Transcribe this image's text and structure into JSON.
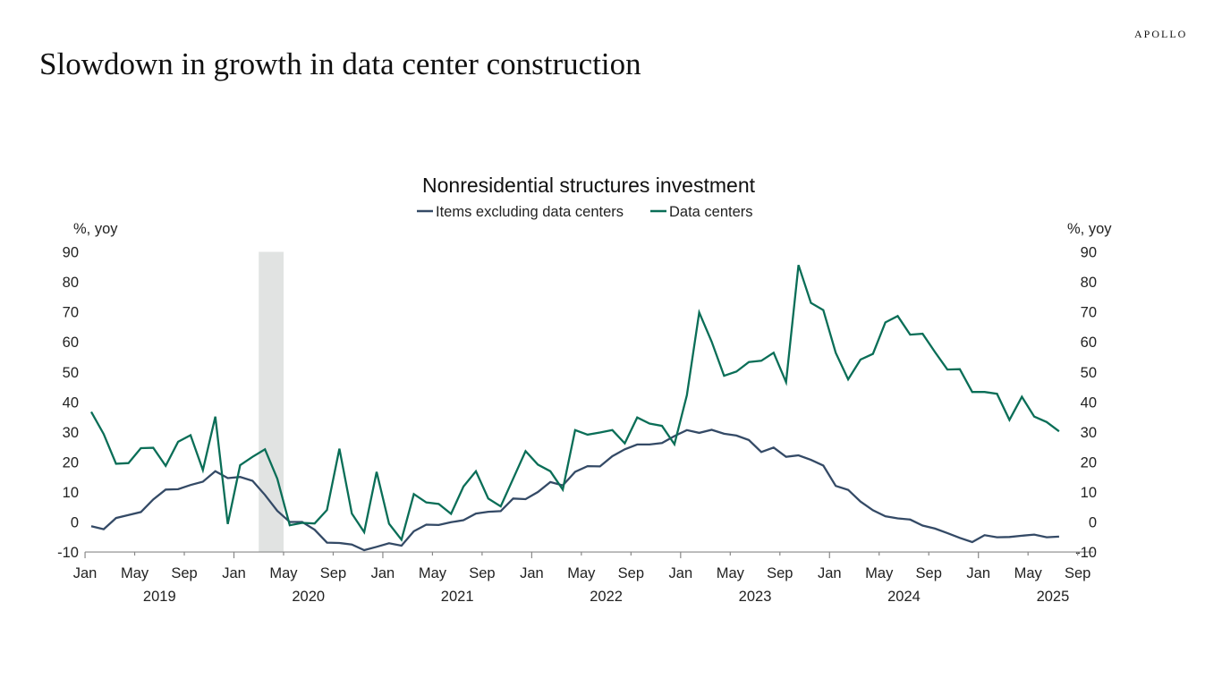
{
  "brand": "APOLLO",
  "headline": "Slowdown in growth in data center construction",
  "chart_data": {
    "type": "line",
    "title": "Nonresidential structures investment",
    "ylabel_left": "%, yoy",
    "ylabel_right": "%, yoy",
    "ylim": [
      -10,
      90
    ],
    "yticks": [
      -10,
      0,
      10,
      20,
      30,
      40,
      50,
      60,
      70,
      80,
      90
    ],
    "legend_position": "top-center",
    "grid": false,
    "x_start": "2019-01",
    "x_frequency": "monthly",
    "xtick_months": [
      {
        "label": "Jan",
        "date": "2019-01"
      },
      {
        "label": "May",
        "date": "2019-05"
      },
      {
        "label": "Sep",
        "date": "2019-09"
      },
      {
        "label": "Jan",
        "date": "2020-01"
      },
      {
        "label": "May",
        "date": "2020-05"
      },
      {
        "label": "Sep",
        "date": "2020-09"
      },
      {
        "label": "Jan",
        "date": "2021-01"
      },
      {
        "label": "May",
        "date": "2021-05"
      },
      {
        "label": "Sep",
        "date": "2021-09"
      },
      {
        "label": "Jan",
        "date": "2022-01"
      },
      {
        "label": "May",
        "date": "2022-05"
      },
      {
        "label": "Sep",
        "date": "2022-09"
      },
      {
        "label": "Jan",
        "date": "2023-01"
      },
      {
        "label": "May",
        "date": "2023-05"
      },
      {
        "label": "Sep",
        "date": "2023-09"
      },
      {
        "label": "Jan",
        "date": "2024-01"
      },
      {
        "label": "May",
        "date": "2024-05"
      },
      {
        "label": "Sep",
        "date": "2024-09"
      },
      {
        "label": "Jan",
        "date": "2025-01"
      },
      {
        "label": "May",
        "date": "2025-05"
      },
      {
        "label": "Sep",
        "date": "2025-09"
      }
    ],
    "xtick_years": [
      "2019",
      "2020",
      "2021",
      "2022",
      "2023",
      "2024",
      "2025"
    ],
    "recession_shading": [
      "2020-03",
      "2020-04"
    ],
    "series": [
      {
        "name": "Items excluding data centers",
        "color": "#344a66",
        "values": [
          -1.4,
          -2.4,
          1.3,
          2.3,
          3.3,
          7.5,
          10.8,
          10.9,
          12.3,
          13.4,
          16.9,
          14.6,
          15.0,
          13.7,
          9.0,
          3.7,
          0.0,
          0.0,
          -2.6,
          -6.9,
          -7.0,
          -7.5,
          -9.4,
          -8.3,
          -7.1,
          -7.9,
          -3.1,
          -0.9,
          -1.0,
          -0.1,
          0.6,
          2.8,
          3.4,
          3.6,
          7.8,
          7.6,
          10.0,
          13.3,
          12.2,
          16.7,
          18.6,
          18.5,
          21.9,
          24.2,
          25.8,
          25.8,
          26.3,
          28.6,
          30.6,
          29.7,
          30.7,
          29.4,
          28.8,
          27.3,
          23.3,
          24.8,
          21.7,
          22.2,
          20.7,
          18.8,
          12.0,
          10.7,
          6.8,
          3.9,
          1.9,
          1.2,
          0.8,
          -1.2,
          -2.2,
          -3.7,
          -5.3,
          -6.7,
          -4.4,
          -5.1,
          -5.0,
          -4.6,
          -4.2,
          -5.1,
          -4.9
        ]
      },
      {
        "name": "Data centers",
        "color": "#0a6e57",
        "values": [
          36.7,
          29.3,
          19.4,
          19.6,
          24.6,
          24.7,
          18.7,
          26.7,
          28.9,
          17.3,
          35.1,
          -0.7,
          18.9,
          21.7,
          24.2,
          14.4,
          -1.1,
          -0.3,
          -0.5,
          4.0,
          24.4,
          2.8,
          -3.4,
          16.7,
          -0.6,
          -5.9,
          9.3,
          6.5,
          6.0,
          2.7,
          11.8,
          16.9,
          7.8,
          5.2,
          14.4,
          23.6,
          19.1,
          16.9,
          10.8,
          30.6,
          29.1,
          29.8,
          30.6,
          26.2,
          34.8,
          32.8,
          32.0,
          25.9,
          42.2,
          69.8,
          60.1,
          48.7,
          50.1,
          53.3,
          53.7,
          56.4,
          46.6,
          85.6,
          73.0,
          70.6,
          56.4,
          47.5,
          54.1,
          56.0,
          66.5,
          68.6,
          62.4,
          62.7,
          56.6,
          50.8,
          50.9,
          43.3,
          43.3,
          42.7,
          34.0,
          41.7,
          35.1,
          33.3,
          30.2
        ]
      }
    ],
    "recession_color": "#e1e3e2"
  }
}
